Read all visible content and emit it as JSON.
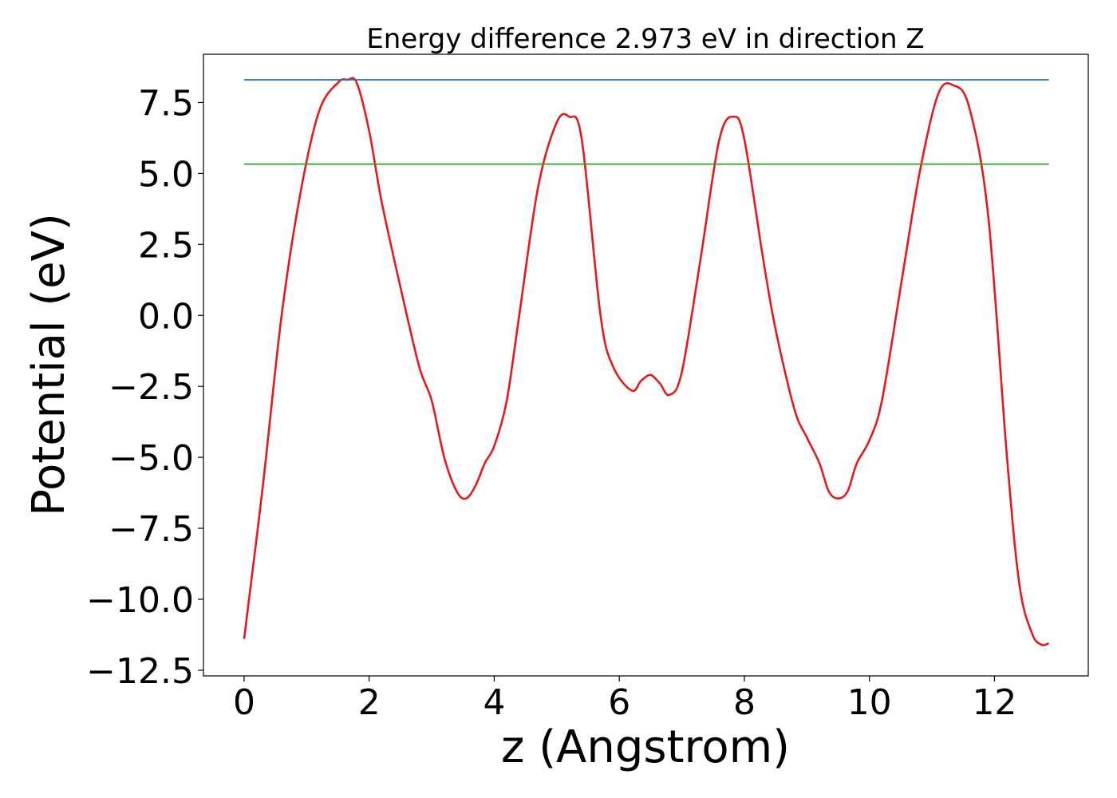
{
  "chart_data": {
    "type": "line",
    "title": "Energy difference 2.973 eV in direction Z",
    "xlabel": "z (Angstrom)",
    "ylabel": "Potential (eV)",
    "xlim": [
      -0.65,
      13.5
    ],
    "ylim": [
      -12.7,
      9.2
    ],
    "xticks": [
      0,
      2,
      4,
      6,
      8,
      10,
      12
    ],
    "xtick_labels": [
      "0",
      "2",
      "4",
      "6",
      "8",
      "10",
      "12"
    ],
    "yticks": [
      7.5,
      5.0,
      2.5,
      0.0,
      -2.5,
      -5.0,
      -7.5,
      -10.0,
      -12.5
    ],
    "ytick_labels": [
      "7.5",
      "5.0",
      "2.5",
      "0.0",
      "−2.5",
      "−5.0",
      "−7.5",
      "−10.0",
      "−12.5"
    ],
    "grid": false,
    "series": [
      {
        "color": "#e41a1c",
        "x": [
          0,
          0.3,
          0.6,
          0.9,
          1.2,
          1.5,
          1.65,
          1.8,
          2.0,
          2.2,
          2.5,
          2.8,
          3.0,
          3.2,
          3.4,
          3.55,
          3.7,
          3.85,
          4.0,
          4.2,
          4.4,
          4.7,
          5.0,
          5.2,
          5.4,
          5.7,
          5.9,
          6.2,
          6.35,
          6.5,
          6.65,
          6.8,
          7.0,
          7.3,
          7.6,
          7.83,
          8.0,
          8.3,
          8.5,
          8.8,
          9.0,
          9.2,
          9.35,
          9.5,
          9.65,
          9.8,
          10.0,
          10.2,
          10.5,
          10.8,
          11.1,
          11.35,
          11.6,
          11.9,
          12.2,
          12.4,
          12.6,
          12.75,
          12.87
        ],
        "y": [
          -11.4,
          -6.0,
          0.0,
          4.3,
          7.2,
          8.2,
          8.3,
          8.2,
          6.5,
          4.0,
          1.0,
          -1.8,
          -3.0,
          -5.0,
          -6.2,
          -6.45,
          -6.0,
          -5.2,
          -4.6,
          -3.0,
          0.0,
          4.5,
          6.8,
          7.0,
          6.2,
          0.0,
          -1.8,
          -2.65,
          -2.3,
          -2.1,
          -2.4,
          -2.8,
          -2.0,
          2.0,
          6.2,
          7.0,
          6.2,
          2.0,
          -0.5,
          -3.3,
          -4.3,
          -5.2,
          -6.2,
          -6.45,
          -6.2,
          -5.2,
          -4.4,
          -3.0,
          1.0,
          5.0,
          7.8,
          8.1,
          7.3,
          3.5,
          -5.0,
          -9.5,
          -11.2,
          -11.6,
          -11.55
        ]
      },
      {
        "color": "#1f77b4",
        "x": [
          0,
          12.87
        ],
        "y": [
          8.3,
          8.3
        ]
      },
      {
        "color": "#2ca02c",
        "x": [
          0,
          12.87
        ],
        "y": [
          5.33,
          5.33
        ]
      }
    ]
  }
}
